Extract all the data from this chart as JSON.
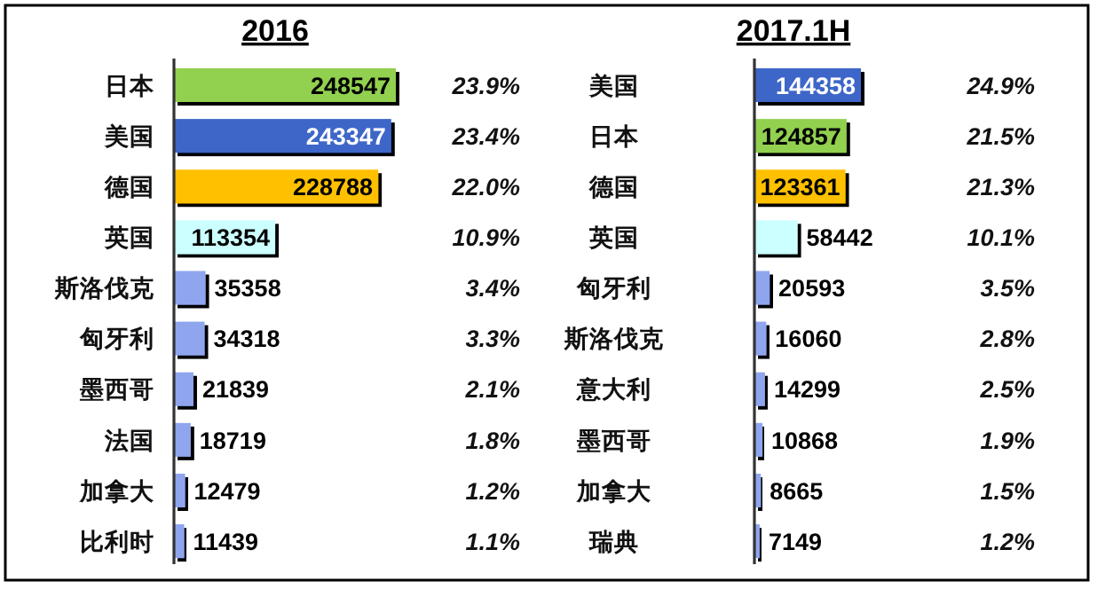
{
  "chart_data": [
    {
      "type": "bar",
      "orientation": "horizontal",
      "title": "2016",
      "tick_labels": "y",
      "data_labels": true,
      "categories": [
        "日本",
        "美国",
        "德国",
        "英国",
        "斯洛伐克",
        "匈牙利",
        "墨西哥",
        "法国",
        "加拿大",
        "比利时"
      ],
      "values": [
        248547,
        243347,
        228788,
        113354,
        35358,
        34318,
        21839,
        18719,
        12479,
        11439
      ],
      "colors": [
        "#92d050",
        "#3c66c8",
        "#ffc000",
        "#ccffff",
        "#8fa5ee",
        "#8fa5ee",
        "#8fa5ee",
        "#8fa5ee",
        "#8fa5ee",
        "#8fa5ee"
      ],
      "annotations": [
        "23.9%",
        "23.4%",
        "22.0%",
        "10.9%",
        "3.4%",
        "3.3%",
        "2.1%",
        "1.8%",
        "1.2%",
        "1.1%"
      ]
    },
    {
      "type": "bar",
      "orientation": "horizontal",
      "title": "2017.1H",
      "tick_labels": "y",
      "data_labels": true,
      "categories": [
        "美国",
        "日本",
        "德国",
        "英国",
        "匈牙利",
        "斯洛伐克",
        "意大利",
        "墨西哥",
        "加拿大",
        "瑞典"
      ],
      "values": [
        144358,
        124857,
        123361,
        58442,
        20593,
        16060,
        14299,
        10868,
        8665,
        7149
      ],
      "colors": [
        "#3c66c8",
        "#92d050",
        "#ffc000",
        "#ccffff",
        "#8fa5ee",
        "#8fa5ee",
        "#8fa5ee",
        "#8fa5ee",
        "#8fa5ee",
        "#8fa5ee"
      ],
      "annotations": [
        "24.9%",
        "21.5%",
        "21.3%",
        "10.1%",
        "3.5%",
        "2.8%",
        "2.5%",
        "1.9%",
        "1.5%",
        "1.2%"
      ]
    }
  ]
}
